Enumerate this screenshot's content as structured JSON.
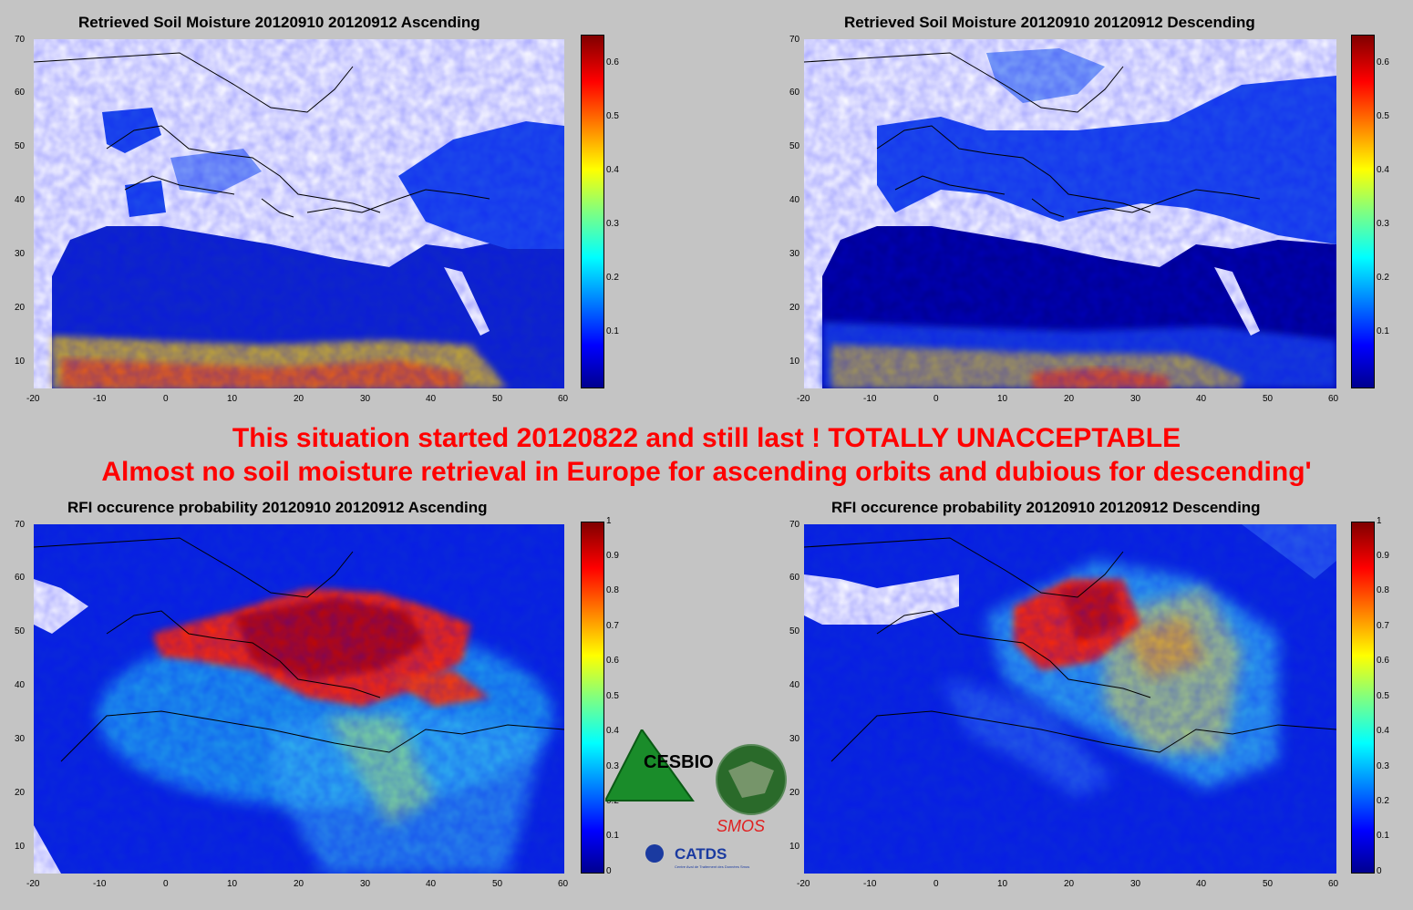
{
  "banner": {
    "line1": "This situation started 20120822 and still last ! TOTALLY UNACCEPTABLE",
    "line2": "Almost no soil moisture retrieval in Europe for ascending orbits and dubious for descending'"
  },
  "colors": {
    "background": "#c4c4c4",
    "banner": "#ff0000",
    "colormap": "jet"
  },
  "chart_data": [
    {
      "type": "heatmap",
      "title": "Retrieved Soil Moisture 20120910 20120912 Ascending",
      "xlim": [
        -20,
        60
      ],
      "ylim": [
        5,
        70
      ],
      "xticks": [
        "-20",
        "-10",
        "0",
        "10",
        "20",
        "30",
        "40",
        "50",
        "60"
      ],
      "yticks": [
        "10",
        "20",
        "30",
        "40",
        "50",
        "60",
        "70"
      ],
      "colorbar": {
        "min": 0,
        "max": 0.65,
        "ticks": [
          "0.1",
          "0.2",
          "0.3",
          "0.4",
          "0.5",
          "0.6"
        ]
      }
    },
    {
      "type": "heatmap",
      "title": "Retrieved Soil Moisture 20120910 20120912 Descending",
      "xlim": [
        -20,
        60
      ],
      "ylim": [
        5,
        70
      ],
      "xticks": [
        "-20",
        "-10",
        "0",
        "10",
        "20",
        "30",
        "40",
        "50",
        "60"
      ],
      "yticks": [
        "10",
        "20",
        "30",
        "40",
        "50",
        "60",
        "70"
      ],
      "colorbar": {
        "min": 0,
        "max": 0.65,
        "ticks": [
          "0.1",
          "0.2",
          "0.3",
          "0.4",
          "0.5",
          "0.6"
        ]
      }
    },
    {
      "type": "heatmap",
      "title": "RFI occurence probability 20120910 20120912 Ascending",
      "xlim": [
        -20,
        60
      ],
      "ylim": [
        5,
        70
      ],
      "xticks": [
        "-20",
        "-10",
        "0",
        "10",
        "20",
        "30",
        "40",
        "50",
        "60"
      ],
      "yticks": [
        "10",
        "20",
        "30",
        "40",
        "50",
        "60",
        "70"
      ],
      "colorbar": {
        "min": 0,
        "max": 1,
        "ticks": [
          "0",
          "0.1",
          "0.2",
          "0.3",
          "0.4",
          "0.5",
          "0.6",
          "0.7",
          "0.8",
          "0.9",
          "1"
        ]
      }
    },
    {
      "type": "heatmap",
      "title": "RFI occurence probability 20120910 20120912 Descending",
      "xlim": [
        -20,
        60
      ],
      "ylim": [
        5,
        70
      ],
      "xticks": [
        "-20",
        "-10",
        "0",
        "10",
        "20",
        "30",
        "40",
        "50",
        "60"
      ],
      "yticks": [
        "10",
        "20",
        "30",
        "40",
        "50",
        "60",
        "70"
      ],
      "colorbar": {
        "min": 0,
        "max": 1,
        "ticks": [
          "0",
          "0.1",
          "0.2",
          "0.3",
          "0.4",
          "0.5",
          "0.6",
          "0.7",
          "0.8",
          "0.9",
          "1"
        ]
      }
    }
  ],
  "logos": {
    "cesbio": "CESBIO",
    "smos": "SMOS",
    "catds": "CATDS",
    "catds_sub": "Centre Aval de Traitement des Données Smos"
  }
}
